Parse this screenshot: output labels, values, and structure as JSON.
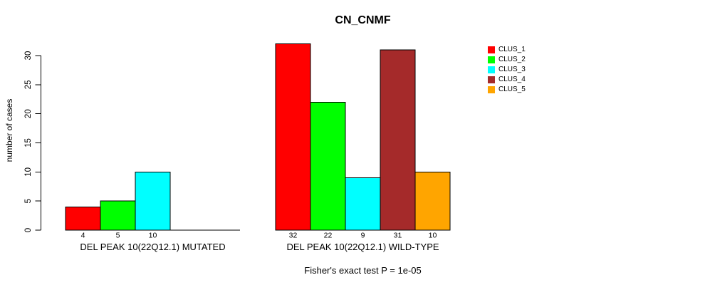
{
  "chart_data": {
    "type": "bar",
    "title": "CN_CNMF",
    "ylabel": "number of cases",
    "xlabel": "",
    "yticks": [
      0,
      5,
      10,
      15,
      20,
      25,
      30
    ],
    "ylim": [
      0,
      32
    ],
    "grid": false,
    "legend_position": "right",
    "legend": [
      {
        "label": "CLUS_1",
        "color": "#ff0000"
      },
      {
        "label": "CLUS_2",
        "color": "#00ff00"
      },
      {
        "label": "CLUS_3",
        "color": "#00ffff"
      },
      {
        "label": "CLUS_4",
        "color": "#a52a2a"
      },
      {
        "label": "CLUS_5",
        "color": "#ffa500"
      }
    ],
    "groups": [
      {
        "label": "DEL PEAK 10(22Q12.1) MUTATED",
        "series": [
          "CLUS_1",
          "CLUS_2",
          "CLUS_3",
          "CLUS_4",
          "CLUS_5"
        ],
        "values": [
          4,
          5,
          10,
          0,
          0
        ],
        "bar_labels": [
          "4",
          "5",
          "10",
          "",
          ""
        ]
      },
      {
        "label": "DEL PEAK 10(22Q12.1) WILD-TYPE",
        "series": [
          "CLUS_1",
          "CLUS_2",
          "CLUS_3",
          "CLUS_4",
          "CLUS_5"
        ],
        "values": [
          32,
          22,
          9,
          31,
          10
        ],
        "bar_labels": [
          "32",
          "22",
          "9",
          "31",
          "10"
        ]
      }
    ],
    "footnote": "Fisher's exact test P = 1e-05",
    "axis_color": "#000000",
    "text_color": "#000000",
    "background_color": "#ffffff"
  }
}
